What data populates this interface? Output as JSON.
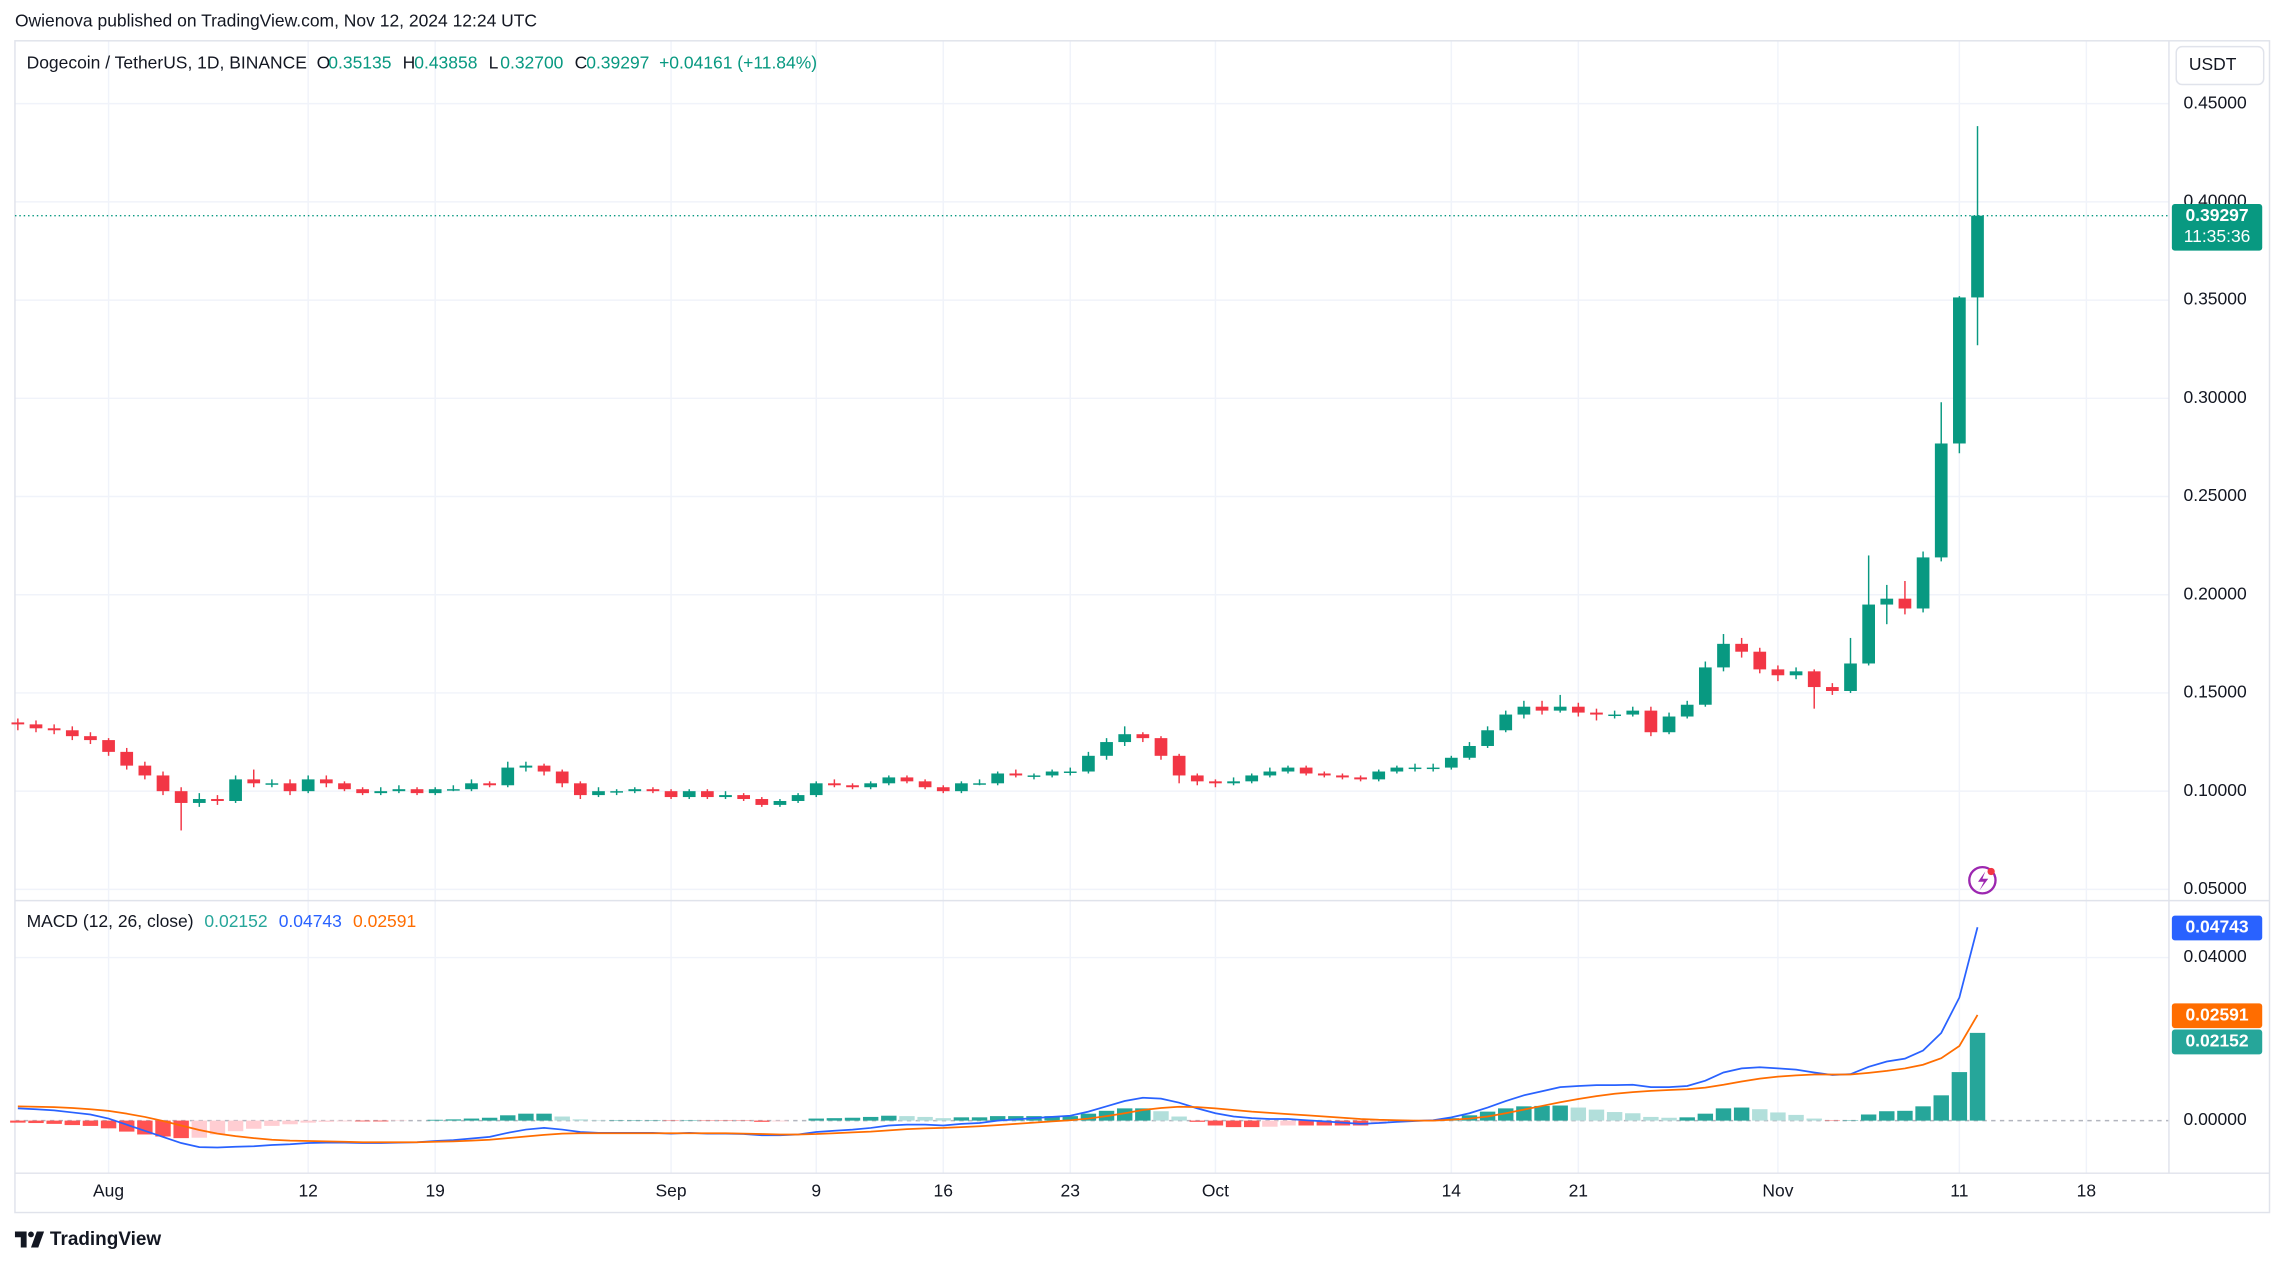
{
  "header": {
    "publisher": "Owienova published on TradingView.com, Nov 12, 2024 12:24 UTC"
  },
  "legend": {
    "symbol": "Dogecoin / TetherUS, 1D, BINANCE",
    "items": [
      {
        "key": "O",
        "value": "0.35135"
      },
      {
        "key": "H",
        "value": "0.43858"
      },
      {
        "key": "L",
        "value": "0.32700"
      },
      {
        "key": "C",
        "value": "0.39297"
      }
    ],
    "change": "+0.04161 (+11.84%)"
  },
  "currency": "USDT",
  "countdown": "11:35:36",
  "footer": {
    "brand": "TradingView"
  },
  "chart_data": [
    {
      "type": "candlestick",
      "up_color": "#089981",
      "down_color": "#f23645",
      "grid": true,
      "last_price_line": true,
      "xlim": [
        -0.16,
        118.55
      ],
      "ylim": [
        0.045,
        0.482
      ],
      "yticks": [
        {
          "value": 0.05,
          "label": "0.05000"
        },
        {
          "value": 0.1,
          "label": "0.10000"
        },
        {
          "value": 0.15,
          "label": "0.15000"
        },
        {
          "value": 0.2,
          "label": "0.20000"
        },
        {
          "value": 0.25,
          "label": "0.25000"
        },
        {
          "value": 0.3,
          "label": "0.30000"
        },
        {
          "value": 0.35,
          "label": "0.35000"
        },
        {
          "value": 0.4,
          "label": "0.40000"
        },
        {
          "value": 0.45,
          "label": "0.45000"
        }
      ],
      "xticks": [
        {
          "value": 5,
          "label": "Aug"
        },
        {
          "value": 16,
          "label": "12"
        },
        {
          "value": 23,
          "label": "19"
        },
        {
          "value": 36,
          "label": "Sep"
        },
        {
          "value": 44,
          "label": "9"
        },
        {
          "value": 51,
          "label": "16"
        },
        {
          "value": 58,
          "label": "23"
        },
        {
          "value": 66,
          "label": "Oct"
        },
        {
          "value": 79,
          "label": "14"
        },
        {
          "value": 86,
          "label": "21"
        },
        {
          "value": 97,
          "label": "Nov"
        },
        {
          "value": 107,
          "label": "11"
        },
        {
          "value": 114,
          "label": "18"
        }
      ],
      "ohlc": [
        [
          0.135,
          0.137,
          0.131,
          0.134
        ],
        [
          0.134,
          0.136,
          0.13,
          0.132
        ],
        [
          0.132,
          0.134,
          0.129,
          0.131
        ],
        [
          0.131,
          0.133,
          0.126,
          0.128
        ],
        [
          0.128,
          0.13,
          0.124,
          0.126
        ],
        [
          0.126,
          0.127,
          0.118,
          0.12
        ],
        [
          0.12,
          0.122,
          0.111,
          0.113
        ],
        [
          0.113,
          0.115,
          0.106,
          0.108
        ],
        [
          0.108,
          0.11,
          0.098,
          0.1
        ],
        [
          0.1,
          0.102,
          0.08,
          0.094
        ],
        [
          0.094,
          0.099,
          0.092,
          0.096
        ],
        [
          0.096,
          0.098,
          0.093,
          0.095
        ],
        [
          0.095,
          0.108,
          0.094,
          0.106
        ],
        [
          0.106,
          0.111,
          0.102,
          0.104
        ],
        [
          0.104,
          0.106,
          0.102,
          0.104
        ],
        [
          0.104,
          0.106,
          0.098,
          0.1
        ],
        [
          0.1,
          0.108,
          0.099,
          0.106
        ],
        [
          0.106,
          0.108,
          0.102,
          0.104
        ],
        [
          0.104,
          0.105,
          0.1,
          0.101
        ],
        [
          0.101,
          0.102,
          0.098,
          0.099
        ],
        [
          0.099,
          0.102,
          0.098,
          0.1
        ],
        [
          0.1,
          0.103,
          0.099,
          0.101
        ],
        [
          0.101,
          0.102,
          0.098,
          0.099
        ],
        [
          0.099,
          0.102,
          0.098,
          0.101
        ],
        [
          0.101,
          0.103,
          0.1,
          0.101
        ],
        [
          0.101,
          0.106,
          0.1,
          0.104
        ],
        [
          0.104,
          0.105,
          0.102,
          0.103
        ],
        [
          0.103,
          0.115,
          0.102,
          0.112
        ],
        [
          0.112,
          0.115,
          0.11,
          0.113
        ],
        [
          0.113,
          0.114,
          0.108,
          0.11
        ],
        [
          0.11,
          0.111,
          0.102,
          0.104
        ],
        [
          0.104,
          0.105,
          0.096,
          0.098
        ],
        [
          0.098,
          0.102,
          0.097,
          0.1
        ],
        [
          0.1,
          0.101,
          0.098,
          0.1
        ],
        [
          0.1,
          0.102,
          0.099,
          0.101
        ],
        [
          0.101,
          0.102,
          0.099,
          0.1
        ],
        [
          0.1,
          0.101,
          0.096,
          0.097
        ],
        [
          0.097,
          0.101,
          0.096,
          0.1
        ],
        [
          0.1,
          0.101,
          0.096,
          0.097
        ],
        [
          0.097,
          0.1,
          0.096,
          0.098
        ],
        [
          0.098,
          0.099,
          0.095,
          0.096
        ],
        [
          0.096,
          0.097,
          0.092,
          0.093
        ],
        [
          0.093,
          0.096,
          0.092,
          0.095
        ],
        [
          0.095,
          0.099,
          0.094,
          0.098
        ],
        [
          0.098,
          0.105,
          0.097,
          0.104
        ],
        [
          0.104,
          0.106,
          0.102,
          0.103
        ],
        [
          0.103,
          0.104,
          0.101,
          0.102
        ],
        [
          0.102,
          0.105,
          0.101,
          0.104
        ],
        [
          0.104,
          0.108,
          0.103,
          0.107
        ],
        [
          0.107,
          0.108,
          0.104,
          0.105
        ],
        [
          0.105,
          0.106,
          0.101,
          0.102
        ],
        [
          0.102,
          0.103,
          0.099,
          0.1
        ],
        [
          0.1,
          0.105,
          0.099,
          0.104
        ],
        [
          0.104,
          0.106,
          0.103,
          0.104
        ],
        [
          0.104,
          0.11,
          0.103,
          0.109
        ],
        [
          0.109,
          0.111,
          0.107,
          0.108
        ],
        [
          0.108,
          0.109,
          0.106,
          0.108
        ],
        [
          0.108,
          0.111,
          0.107,
          0.11
        ],
        [
          0.11,
          0.112,
          0.108,
          0.11
        ],
        [
          0.11,
          0.12,
          0.109,
          0.118
        ],
        [
          0.118,
          0.127,
          0.116,
          0.125
        ],
        [
          0.125,
          0.133,
          0.123,
          0.129
        ],
        [
          0.129,
          0.13,
          0.125,
          0.127
        ],
        [
          0.127,
          0.128,
          0.116,
          0.118
        ],
        [
          0.118,
          0.119,
          0.104,
          0.108
        ],
        [
          0.108,
          0.109,
          0.103,
          0.105
        ],
        [
          0.105,
          0.106,
          0.102,
          0.104
        ],
        [
          0.104,
          0.107,
          0.103,
          0.105
        ],
        [
          0.105,
          0.109,
          0.104,
          0.108
        ],
        [
          0.108,
          0.112,
          0.107,
          0.11
        ],
        [
          0.11,
          0.113,
          0.109,
          0.112
        ],
        [
          0.112,
          0.113,
          0.108,
          0.109
        ],
        [
          0.109,
          0.11,
          0.107,
          0.108
        ],
        [
          0.108,
          0.109,
          0.106,
          0.107
        ],
        [
          0.107,
          0.108,
          0.105,
          0.106
        ],
        [
          0.106,
          0.111,
          0.105,
          0.11
        ],
        [
          0.11,
          0.113,
          0.109,
          0.112
        ],
        [
          0.112,
          0.114,
          0.11,
          0.112
        ],
        [
          0.112,
          0.114,
          0.11,
          0.112
        ],
        [
          0.112,
          0.118,
          0.111,
          0.117
        ],
        [
          0.117,
          0.125,
          0.116,
          0.123
        ],
        [
          0.123,
          0.133,
          0.122,
          0.131
        ],
        [
          0.131,
          0.141,
          0.13,
          0.139
        ],
        [
          0.139,
          0.146,
          0.137,
          0.143
        ],
        [
          0.143,
          0.146,
          0.139,
          0.141
        ],
        [
          0.141,
          0.149,
          0.14,
          0.143
        ],
        [
          0.143,
          0.145,
          0.138,
          0.14
        ],
        [
          0.14,
          0.142,
          0.136,
          0.139
        ],
        [
          0.139,
          0.141,
          0.137,
          0.139
        ],
        [
          0.139,
          0.143,
          0.138,
          0.141
        ],
        [
          0.141,
          0.143,
          0.128,
          0.13
        ],
        [
          0.13,
          0.14,
          0.129,
          0.138
        ],
        [
          0.138,
          0.146,
          0.137,
          0.144
        ],
        [
          0.144,
          0.166,
          0.143,
          0.163
        ],
        [
          0.163,
          0.18,
          0.161,
          0.175
        ],
        [
          0.175,
          0.178,
          0.168,
          0.171
        ],
        [
          0.171,
          0.173,
          0.16,
          0.162
        ],
        [
          0.162,
          0.164,
          0.156,
          0.159
        ],
        [
          0.159,
          0.163,
          0.157,
          0.161
        ],
        [
          0.161,
          0.162,
          0.142,
          0.153
        ],
        [
          0.153,
          0.155,
          0.149,
          0.151
        ],
        [
          0.151,
          0.178,
          0.15,
          0.165
        ],
        [
          0.165,
          0.22,
          0.164,
          0.195
        ],
        [
          0.195,
          0.205,
          0.185,
          0.198
        ],
        [
          0.198,
          0.207,
          0.19,
          0.193
        ],
        [
          0.193,
          0.222,
          0.191,
          0.219
        ],
        [
          0.219,
          0.298,
          0.217,
          0.277
        ],
        [
          0.277,
          0.352,
          0.272,
          0.35135
        ],
        [
          0.35135,
          0.43858,
          0.327,
          0.39297
        ]
      ]
    },
    {
      "type": "macd",
      "title": "MACD (12, 26, close)",
      "grid": true,
      "xlim": [
        -0.16,
        118.55
      ],
      "ylim": [
        -0.0129,
        0.0536
      ],
      "yticks": [
        {
          "value": 0,
          "label": "0.00000"
        },
        {
          "value": 0.04,
          "label": "0.04000"
        }
      ],
      "histogram": {
        "colors": {
          "pos_up": "#26a69a",
          "pos_down": "#b2dfdb",
          "neg_down": "#ff5252",
          "neg_up": "#ffcdd2"
        },
        "values": [
          -0.0005,
          -0.0006,
          -0.0008,
          -0.0011,
          -0.0013,
          -0.0019,
          -0.0027,
          -0.0034,
          -0.0039,
          -0.0043,
          -0.0042,
          -0.0034,
          -0.0026,
          -0.002,
          -0.0013,
          -0.0009,
          -0.0005,
          -0.0003,
          -0.0002,
          -0.0002,
          -0.0002,
          -0.0001,
          0,
          0.0002,
          0.0003,
          0.0005,
          0.0007,
          0.0013,
          0.0017,
          0.0017,
          0.001,
          0.0003,
          0.0001,
          0.0001,
          0.0001,
          0.0001,
          -0.0001,
          0.0001,
          -0.0001,
          -0.0001,
          -0.0001,
          -0.0003,
          -0.0002,
          0,
          0.0005,
          0.0006,
          0.0007,
          0.0009,
          0.0012,
          0.0011,
          0.0009,
          0.0006,
          0.0008,
          0.0008,
          0.0011,
          0.0011,
          0.0011,
          0.0011,
          0.0011,
          0.0017,
          0.0024,
          0.003,
          0.003,
          0.0023,
          0.001,
          -0.0003,
          -0.0012,
          -0.0016,
          -0.0016,
          -0.0015,
          -0.0012,
          -0.0012,
          -0.0012,
          -0.0012,
          -0.0012,
          -0.0008,
          -0.0004,
          -0.0001,
          0.0001,
          0.0006,
          0.0013,
          0.0022,
          0.003,
          0.0035,
          0.0036,
          0.0037,
          0.0032,
          0.0027,
          0.0021,
          0.0018,
          0.0009,
          0.0007,
          0.0008,
          0.0017,
          0.003,
          0.0032,
          0.0028,
          0.002,
          0.0014,
          0.0005,
          -0.0001,
          0.0001,
          0.0015,
          0.0023,
          0.0024,
          0.0035,
          0.0062,
          0.0119,
          0.02152
        ]
      },
      "series": [
        {
          "color": "#2962ff",
          "values": [
            0.003,
            0.0028,
            0.0025,
            0.002,
            0.0015,
            0.0005,
            -0.001,
            -0.0025,
            -0.004,
            -0.0055,
            -0.0065,
            -0.0066,
            -0.0064,
            -0.0063,
            -0.006,
            -0.0058,
            -0.0055,
            -0.0054,
            -0.0054,
            -0.0055,
            -0.0055,
            -0.0054,
            -0.0053,
            -0.005,
            -0.0048,
            -0.0044,
            -0.004,
            -0.003,
            -0.0022,
            -0.0018,
            -0.0022,
            -0.0028,
            -0.003,
            -0.003,
            -0.003,
            -0.003,
            -0.0032,
            -0.003,
            -0.0032,
            -0.0032,
            -0.0033,
            -0.0036,
            -0.0036,
            -0.0034,
            -0.0028,
            -0.0025,
            -0.0022,
            -0.0018,
            -0.0012,
            -0.001,
            -0.001,
            -0.0012,
            -0.0008,
            -0.0006,
            0,
            0.0003,
            0.0006,
            0.0009,
            0.0012,
            0.0022,
            0.0035,
            0.0048,
            0.0056,
            0.0054,
            0.0044,
            0.003,
            0.0018,
            0.001,
            0.0006,
            0.0004,
            0.0004,
            0.0001,
            -0.0002,
            -0.0005,
            -0.0008,
            -0.0006,
            -0.0003,
            -0.0001,
            0.0001,
            0.0008,
            0.0018,
            0.0032,
            0.0048,
            0.0062,
            0.0072,
            0.0082,
            0.0085,
            0.0087,
            0.0087,
            0.0088,
            0.0082,
            0.0082,
            0.0085,
            0.0098,
            0.0118,
            0.0128,
            0.0131,
            0.0128,
            0.0125,
            0.0118,
            0.0112,
            0.0114,
            0.0132,
            0.0145,
            0.0152,
            0.0172,
            0.0215,
            0.0302,
            0.04743
          ]
        },
        {
          "color": "#ff6d00",
          "values": [
            0.0035,
            0.0034,
            0.0033,
            0.0031,
            0.0028,
            0.0024,
            0.0017,
            0.0009,
            -0.0001,
            -0.0012,
            -0.0023,
            -0.0032,
            -0.0038,
            -0.0043,
            -0.0047,
            -0.0049,
            -0.005,
            -0.0051,
            -0.0052,
            -0.0053,
            -0.0053,
            -0.0053,
            -0.0053,
            -0.0052,
            -0.0051,
            -0.0049,
            -0.0047,
            -0.0043,
            -0.0039,
            -0.0035,
            -0.0032,
            -0.0031,
            -0.0031,
            -0.0031,
            -0.0031,
            -0.0031,
            -0.0031,
            -0.0031,
            -0.0031,
            -0.0031,
            -0.0032,
            -0.0033,
            -0.0034,
            -0.0034,
            -0.0033,
            -0.0031,
            -0.0029,
            -0.0027,
            -0.0024,
            -0.0021,
            -0.0019,
            -0.0018,
            -0.0016,
            -0.0014,
            -0.0011,
            -0.0008,
            -0.0005,
            -0.0002,
            0.0001,
            0.0005,
            0.0011,
            0.0018,
            0.0026,
            0.0031,
            0.0034,
            0.0033,
            0.003,
            0.0026,
            0.0022,
            0.0019,
            0.0016,
            0.0013,
            0.001,
            0.0007,
            0.0004,
            0.0002,
            0.0001,
            0,
            0,
            0.0002,
            0.0005,
            0.001,
            0.0018,
            0.0027,
            0.0036,
            0.0045,
            0.0053,
            0.006,
            0.0066,
            0.007,
            0.0073,
            0.0075,
            0.0077,
            0.0081,
            0.0088,
            0.0096,
            0.0103,
            0.0108,
            0.0111,
            0.0113,
            0.0113,
            0.0113,
            0.0117,
            0.0122,
            0.0128,
            0.0137,
            0.0153,
            0.0183,
            0.02591
          ]
        }
      ]
    }
  ]
}
